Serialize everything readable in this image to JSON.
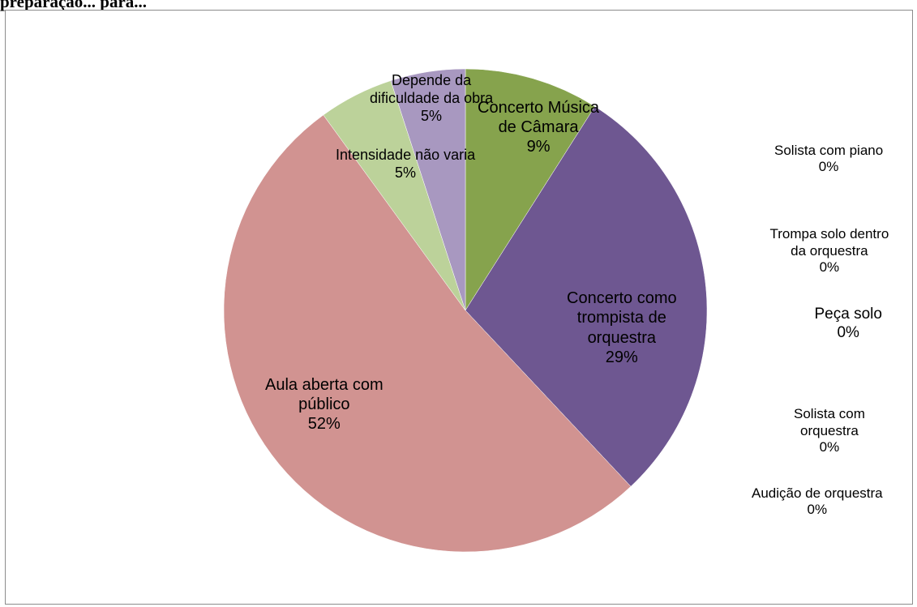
{
  "header": {
    "text": "preparação... para..."
  },
  "chart_data": {
    "type": "pie",
    "title": "",
    "start_angle_deg": 0,
    "direction": "clockwise",
    "slices": [
      {
        "label_lines": [
          "Concerto Música",
          "de Câmara"
        ],
        "pct_text": "9%",
        "value": 9,
        "color": "#86a34d"
      },
      {
        "label_lines": [
          "Concerto como",
          "trompista de",
          "orquestra"
        ],
        "pct_text": "29%",
        "value": 29,
        "color": "#6e5791"
      },
      {
        "label_lines": [
          "Aula aberta com",
          "público"
        ],
        "pct_text": "52%",
        "value": 52,
        "color": "#d19391"
      },
      {
        "label_lines": [
          "Intensidade não varia"
        ],
        "pct_text": "5%",
        "value": 5,
        "color": "#bcd29a"
      },
      {
        "label_lines": [
          "Depende da",
          "dificuldade da obra"
        ],
        "pct_text": "5%",
        "value": 5,
        "color": "#a898c0"
      }
    ],
    "zero_entries": [
      {
        "label_lines": [
          "Solista com piano"
        ],
        "pct_text": "0%",
        "value": 0
      },
      {
        "label_lines": [
          "Trompa solo dentro",
          "da orquestra"
        ],
        "pct_text": "0%",
        "value": 0
      },
      {
        "label_lines": [
          "Peça solo"
        ],
        "pct_text": "0%",
        "value": 0
      },
      {
        "label_lines": [
          "Solista com",
          "orquestra"
        ],
        "pct_text": "0%",
        "value": 0
      },
      {
        "label_lines": [
          "Audição de orquestra"
        ],
        "pct_text": "0%",
        "value": 0
      }
    ]
  }
}
